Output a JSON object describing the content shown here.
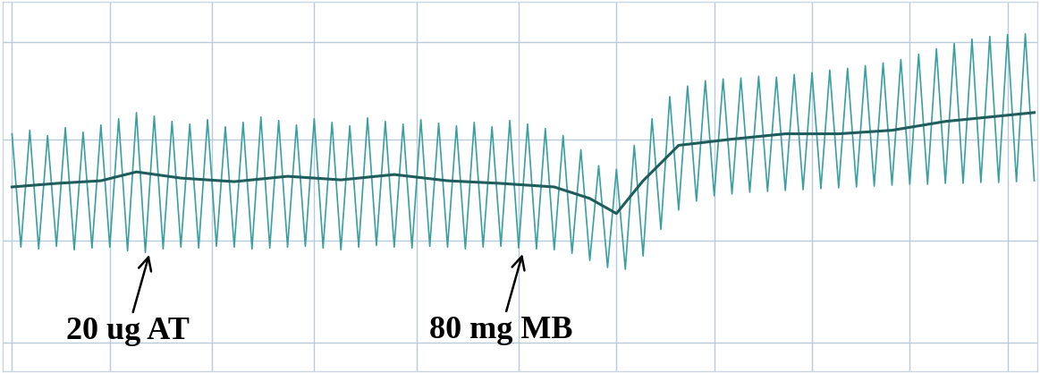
{
  "chart_data": {
    "type": "line",
    "xlim": [
      0,
      1163
    ],
    "ylim": [
      0,
      417
    ],
    "xticks": [
      10,
      120,
      235,
      350,
      465,
      580,
      690,
      800,
      910,
      1020,
      1130
    ],
    "yticks": [
      32,
      147,
      262,
      372
    ],
    "grid": true,
    "tick_labels": false,
    "series": [
      {
        "color": "#3a9f9f",
        "line_style": "solid",
        "x": [
          10,
          20,
          30,
          40,
          50,
          60,
          70,
          80,
          90,
          100,
          110,
          120,
          130,
          140,
          150,
          160,
          170,
          180,
          190,
          200,
          210,
          220,
          230,
          240,
          250,
          260,
          270,
          280,
          290,
          300,
          310,
          320,
          330,
          340,
          350,
          360,
          370,
          380,
          390,
          400,
          410,
          420,
          430,
          440,
          450,
          460,
          470,
          480,
          490,
          500,
          510,
          520,
          530,
          540,
          550,
          560,
          570,
          580,
          590,
          600,
          610,
          620,
          630,
          640,
          650,
          660,
          670,
          680,
          690,
          700,
          710,
          720,
          730,
          740,
          750,
          760,
          770,
          780,
          790,
          800,
          810,
          820,
          830,
          840,
          850,
          860,
          870,
          880,
          890,
          900,
          910,
          920,
          930,
          940,
          950,
          960,
          970,
          980,
          990,
          1000,
          1010,
          1020,
          1030,
          1040,
          1050,
          1060,
          1070,
          1080,
          1090,
          1100,
          1110,
          1120,
          1130,
          1140,
          1150,
          1160
        ],
        "values": [
          268,
          140,
          272,
          138,
          266,
          141,
          275,
          137,
          270,
          139,
          278,
          140,
          285,
          136,
          292,
          134,
          288,
          138,
          282,
          140,
          279,
          139,
          284,
          141,
          276,
          140,
          281,
          138,
          287,
          139,
          283,
          140,
          278,
          141,
          285,
          139,
          281,
          137,
          277,
          140,
          286,
          142,
          282,
          140,
          279,
          139,
          284,
          141,
          280,
          140,
          277,
          138,
          281,
          140,
          276,
          141,
          283,
          139,
          279,
          138,
          274,
          137,
          266,
          133,
          250,
          125,
          232,
          117,
          228,
          115,
          255,
          130,
          285,
          160,
          310,
          182,
          322,
          192,
          328,
          198,
          330,
          200,
          331,
          202,
          333,
          203,
          332,
          204,
          335,
          205,
          337,
          206,
          340,
          207,
          342,
          208,
          345,
          209,
          348,
          210,
          352,
          211,
          358,
          211,
          364,
          212,
          370,
          212,
          375,
          213,
          378,
          213,
          380,
          214,
          381,
          215
        ]
      },
      {
        "color": "#1f5c5c",
        "line_style": "solid",
        "x": [
          10,
          60,
          110,
          150,
          200,
          260,
          320,
          380,
          440,
          500,
          560,
          620,
          660,
          690,
          720,
          760,
          820,
          880,
          940,
          1000,
          1060,
          1120,
          1160
        ],
        "values": [
          208,
          212,
          215,
          225,
          218,
          214,
          220,
          216,
          222,
          215,
          212,
          208,
          195,
          178,
          215,
          255,
          262,
          268,
          268,
          272,
          282,
          288,
          292
        ]
      }
    ],
    "annotations": [
      {
        "text": "20 ug AT",
        "x": 165,
        "y": 134
      },
      {
        "text": "80 mg MB",
        "x": 585,
        "y": 135
      }
    ]
  }
}
